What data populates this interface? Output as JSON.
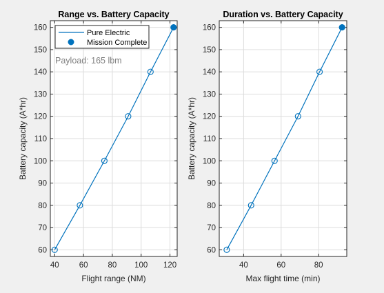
{
  "chart_data": [
    {
      "type": "line",
      "title": "Range vs. Battery Capacity",
      "xlabel": "Flight range (NM)",
      "ylabel": "Battery capacity (A*hr)",
      "xlim": [
        37,
        125
      ],
      "ylim": [
        57,
        163
      ],
      "xticks": [
        40,
        60,
        80,
        100,
        120
      ],
      "yticks": [
        60,
        70,
        80,
        90,
        100,
        110,
        120,
        130,
        140,
        150,
        160
      ],
      "grid": true,
      "series": [
        {
          "name": "Pure Electric",
          "x": [
            40,
            57.5,
            74.5,
            91,
            106.5,
            122.5
          ],
          "y": [
            60,
            80,
            100,
            120,
            140,
            160
          ]
        }
      ],
      "final_point": {
        "name": "Mission Complete",
        "x": 122.5,
        "y": 160
      },
      "annotation": "Payload: 165 lbm",
      "legend": {
        "position": "top-left",
        "entries": [
          "Pure Electric",
          "Mission Complete"
        ]
      },
      "color": "#0072BD"
    },
    {
      "type": "line",
      "title": "Duration vs. Battery Capacity",
      "xlabel": "Max flight time (min)",
      "ylabel": "Battery capacity (A*hr)",
      "xlim": [
        27,
        95
      ],
      "ylim": [
        57,
        163
      ],
      "xticks": [
        40,
        60,
        80
      ],
      "yticks": [
        60,
        70,
        80,
        90,
        100,
        110,
        120,
        130,
        140,
        150,
        160
      ],
      "grid": true,
      "series": [
        {
          "name": "Pure Electric",
          "x": [
            31,
            44,
            56.5,
            69,
            80.5,
            92.5
          ],
          "y": [
            60,
            80,
            100,
            120,
            140,
            160
          ]
        }
      ],
      "final_point": {
        "name": "Mission Complete",
        "x": 92.5,
        "y": 160
      },
      "color": "#0072BD"
    }
  ]
}
